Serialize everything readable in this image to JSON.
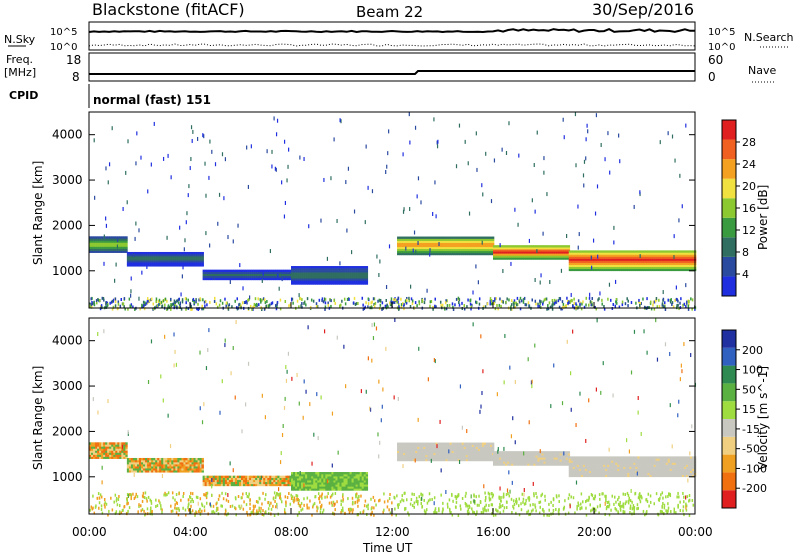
{
  "header": {
    "station": "Blackstone (fitACF)",
    "beam": "Beam 22",
    "date": "30/Sep/2016"
  },
  "labels": {
    "nsky": "N.Sky",
    "freq": "Freq.",
    "freq_unit": "[MHz]",
    "cpid": "CPID",
    "nsearch": "N.Search",
    "nave": "Nave",
    "mode": "normal (fast) 151",
    "xlabel": "Time UT"
  },
  "noise_panel": {
    "left_ticks": [
      "10^5",
      "10^0"
    ],
    "right_ticks": [
      "10^5",
      "10^0"
    ]
  },
  "freq_panel": {
    "left_ticks": [
      "18",
      "8"
    ],
    "right_ticks": [
      "60",
      "0"
    ]
  },
  "x_ticks": [
    "00:00",
    "04:00",
    "08:00",
    "12:00",
    "16:00",
    "20:00",
    "00:00"
  ],
  "power_colorbar": {
    "label": "Power [dB]",
    "ticks": [
      "4",
      "8",
      "12",
      "16",
      "20",
      "24",
      "28"
    ],
    "colors": [
      "#1f2fe0",
      "#2a4aa0",
      "#2f6e60",
      "#3a9a40",
      "#8cc830",
      "#f0e040",
      "#f4a020",
      "#f06020",
      "#e02020"
    ]
  },
  "velocity_colorbar": {
    "label": "Velocity [m s^-1]",
    "ticks": [
      "200",
      "100",
      "50",
      "15",
      "-15",
      "-50",
      "-100",
      "-200"
    ],
    "colors": [
      "#2030a0",
      "#3060c0",
      "#2e8a50",
      "#5ab040",
      "#9fdc40",
      "#c8c8c0",
      "#f0d080",
      "#f0a020",
      "#f07010",
      "#e02020"
    ]
  },
  "chart_data": [
    {
      "type": "heatmap",
      "name": "Power",
      "ylabel": "Slant Range [km]",
      "xlabel": "Time UT",
      "y_ticks": [
        1000,
        2000,
        3000,
        4000
      ],
      "ylim": [
        180,
        4500
      ],
      "xlim_hours": [
        0,
        24
      ],
      "bands": [
        {
          "t0": 0.0,
          "t1": 1.5,
          "r0": 1400,
          "r1": 1750,
          "level": "mid"
        },
        {
          "t0": 1.5,
          "t1": 4.5,
          "r0": 1100,
          "r1": 1400,
          "level": "low"
        },
        {
          "t0": 4.5,
          "t1": 8.0,
          "r0": 800,
          "r1": 1000,
          "level": "low"
        },
        {
          "t0": 8.0,
          "t1": 11.0,
          "r0": 700,
          "r1": 1100,
          "level": "low"
        },
        {
          "t0": 12.2,
          "t1": 16.0,
          "r0": 1350,
          "r1": 1750,
          "level": "mid-high"
        },
        {
          "t0": 16.0,
          "t1": 19.0,
          "r0": 1250,
          "r1": 1550,
          "level": "high"
        },
        {
          "t0": 19.0,
          "t1": 24.0,
          "r0": 1000,
          "r1": 1450,
          "level": "high"
        }
      ]
    },
    {
      "type": "heatmap",
      "name": "Velocity",
      "ylabel": "Slant Range [km]",
      "xlabel": "Time UT",
      "y_ticks": [
        1000,
        2000,
        3000,
        4000
      ],
      "ylim": [
        180,
        4500
      ],
      "xlim_hours": [
        0,
        24
      ]
    }
  ]
}
